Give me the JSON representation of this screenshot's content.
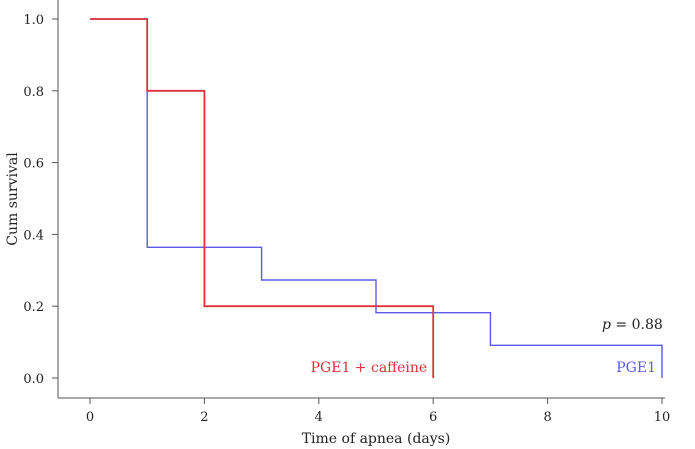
{
  "chart_data": {
    "type": "line",
    "step": true,
    "xlabel": "Time of apnea (days)",
    "ylabel": "Cum survival",
    "xlim": [
      0,
      10
    ],
    "ylim": [
      0,
      1.0
    ],
    "xticks": [
      0,
      2,
      4,
      6,
      8,
      10
    ],
    "yticks": [
      0.0,
      0.2,
      0.4,
      0.6,
      0.8,
      1.0
    ],
    "xtick_labels": [
      "0",
      "2",
      "4",
      "6",
      "8",
      "10"
    ],
    "ytick_labels": [
      "0.0",
      "0.2",
      "0.4",
      "0.6",
      "0.8",
      "1.0"
    ],
    "grid": false,
    "series": [
      {
        "name": "PGE1",
        "color": "#5a5ae6",
        "x": [
          0,
          1,
          3,
          5,
          7,
          10
        ],
        "y": [
          1.0,
          0.364,
          0.273,
          0.182,
          0.091,
          0.0
        ],
        "end_x": 10
      },
      {
        "name": "PGE1 + caffeine",
        "color": "#e0303a",
        "x": [
          0,
          1,
          2,
          6
        ],
        "y": [
          1.0,
          0.8,
          0.2,
          0.0
        ],
        "end_x": 6
      }
    ],
    "annotation": {
      "p_symbol": "p",
      "p_text": " = 0.88"
    }
  }
}
